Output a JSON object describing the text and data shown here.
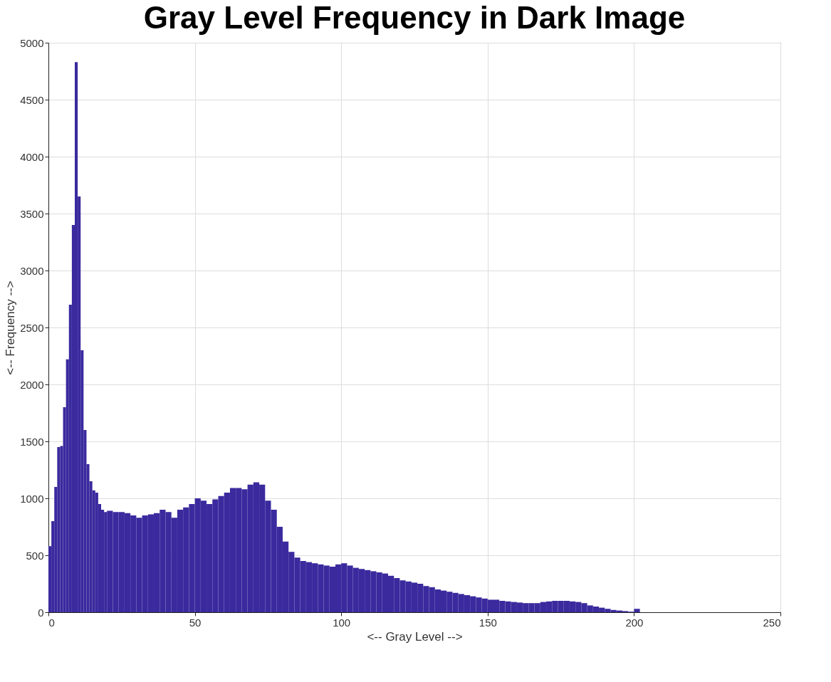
{
  "chart_data": {
    "type": "histogram",
    "title": "Gray Level Frequency in Dark Image",
    "xlabel": "<-- Gray Level -->",
    "ylabel": "<-- Frequency -->",
    "color": "#3a2a9e",
    "bins": [
      0,
      1,
      2,
      3,
      4,
      5,
      6,
      7,
      8,
      9,
      10,
      11,
      12,
      13,
      14,
      15,
      16,
      17,
      18,
      19,
      20,
      22,
      24,
      26,
      28,
      30,
      32,
      34,
      36,
      38,
      40,
      42,
      44,
      46,
      48,
      50,
      52,
      54,
      56,
      58,
      60,
      62,
      64,
      66,
      68,
      70,
      72,
      74,
      76,
      78,
      80,
      82,
      84,
      86,
      88,
      90,
      92,
      94,
      96,
      98,
      100,
      102,
      104,
      106,
      108,
      110,
      112,
      114,
      116,
      118,
      120,
      122,
      124,
      126,
      128,
      130,
      132,
      134,
      136,
      138,
      140,
      142,
      144,
      146,
      148,
      150,
      152,
      154,
      156,
      158,
      160,
      162,
      164,
      166,
      168,
      170,
      172,
      174,
      176,
      178,
      180,
      182,
      184,
      186,
      188,
      190,
      192,
      194,
      196,
      198,
      200,
      202
    ],
    "values": [
      580,
      800,
      1100,
      1450,
      1460,
      1800,
      2220,
      2700,
      3400,
      4830,
      3650,
      2300,
      1600,
      1300,
      1150,
      1070,
      1050,
      950,
      900,
      880,
      890,
      880,
      880,
      870,
      850,
      830,
      850,
      860,
      870,
      900,
      880,
      830,
      900,
      920,
      950,
      1000,
      980,
      950,
      990,
      1020,
      1050,
      1090,
      1090,
      1080,
      1120,
      1140,
      1120,
      980,
      900,
      750,
      620,
      530,
      480,
      450,
      440,
      430,
      420,
      410,
      400,
      420,
      430,
      410,
      390,
      380,
      370,
      360,
      350,
      340,
      320,
      300,
      280,
      270,
      260,
      250,
      230,
      220,
      200,
      190,
      180,
      170,
      160,
      150,
      140,
      130,
      120,
      110,
      110,
      100,
      95,
      90,
      85,
      80,
      80,
      80,
      90,
      95,
      100,
      100,
      100,
      95,
      90,
      80,
      60,
      50,
      40,
      30,
      20,
      15,
      10,
      5,
      30
    ],
    "xlim": [
      0,
      250
    ],
    "xticks": [
      0,
      50,
      100,
      150,
      200,
      250
    ],
    "ylim": [
      0,
      5000
    ],
    "yticks": [
      0,
      500,
      1000,
      1500,
      2000,
      2500,
      3000,
      3500,
      4000,
      4500,
      5000
    ],
    "grid": true
  }
}
